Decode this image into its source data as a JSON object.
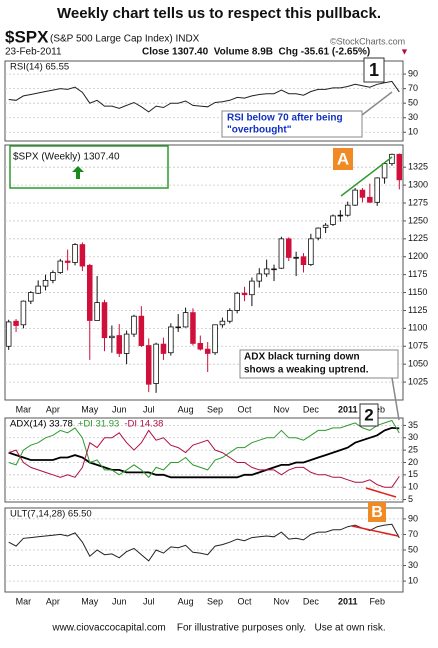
{
  "title": "Weekly chart tells us to respect this pullback.",
  "header": {
    "symbol": "$SPX",
    "name": "(S&P 500 Large Cap Index) INDX",
    "date": "23-Feb-2011",
    "stats": "Close 1307.40  Volume 8.9B  Chg -35.61 (-2.65%)",
    "credit": "©StockCharts.com"
  },
  "annotations": {
    "rsi_marker": "1",
    "rsi_note": [
      "RSI below 70 after being",
      "\"overbought\""
    ],
    "price_marker": "A",
    "adx_note": [
      "ADX black turning down",
      "shows a weaking uptrend."
    ],
    "adx_marker": "2",
    "ult_marker": "B"
  },
  "footer": "www.ciovaccocapital.com    For illustrative purposes only.   Use at own risk.",
  "chart_data": [
    {
      "type": "line",
      "title": "RSI(14) 65.55",
      "series": [
        {
          "color": "#222222",
          "values": [
            55,
            54,
            60,
            62,
            64,
            66,
            68,
            70,
            69,
            72,
            65,
            50,
            54,
            46,
            46,
            43,
            47,
            51,
            45,
            38,
            46,
            44,
            50,
            50,
            53,
            47,
            46,
            45,
            51,
            52,
            54,
            58,
            57,
            60,
            62,
            63,
            63,
            68,
            63,
            63,
            61,
            66,
            69,
            69,
            71,
            71,
            73,
            76,
            74,
            72,
            76,
            78,
            80,
            65.55
          ]
        }
      ],
      "ylim": [
        -2,
        108
      ],
      "yticks": [
        90,
        70,
        50,
        30,
        10
      ],
      "grid": true
    },
    {
      "type": "candlestick",
      "title": "$SPX (Weekly) 1307.40",
      "categories": [
        null,
        null,
        "Mar",
        null,
        null,
        null,
        "Apr",
        null,
        null,
        null,
        null,
        "May",
        null,
        null,
        null,
        "Jun",
        null,
        null,
        null,
        "Jul",
        null,
        null,
        null,
        null,
        "Aug",
        null,
        null,
        null,
        "Sep",
        null,
        null,
        null,
        "Oct",
        null,
        null,
        null,
        null,
        "Nov",
        null,
        null,
        null,
        "Dec",
        null,
        null,
        null,
        null,
        "2011",
        null,
        null,
        null,
        "Feb",
        null,
        null,
        null
      ],
      "open": [
        1075,
        1110,
        1105,
        1138,
        1149,
        1159,
        1167,
        1178,
        1194,
        1192,
        1217,
        1188,
        1111,
        1136,
        1087,
        1090,
        1065,
        1092,
        1117,
        1076,
        1023,
        1078,
        1066,
        1102,
        1102,
        1122,
        1079,
        1071,
        1066,
        1105,
        1110,
        1125,
        1149,
        1147,
        1166,
        1176,
        1183,
        1184,
        1225,
        1199,
        1200,
        1189,
        1226,
        1241,
        1245,
        1257,
        1258,
        1272,
        1293,
        1283,
        1276,
        1310,
        1330,
        1343
      ],
      "high": [
        1112,
        1113,
        1139,
        1152,
        1167,
        1175,
        1181,
        1197,
        1210,
        1219,
        1220,
        1190,
        1173,
        1140,
        1104,
        1106,
        1097,
        1119,
        1131,
        1086,
        1080,
        1087,
        1107,
        1120,
        1129,
        1128,
        1090,
        1081,
        1105,
        1115,
        1128,
        1151,
        1158,
        1171,
        1184,
        1196,
        1189,
        1228,
        1227,
        1207,
        1205,
        1232,
        1241,
        1247,
        1259,
        1265,
        1277,
        1296,
        1296,
        1302,
        1311,
        1332,
        1344,
        1344
      ],
      "low": [
        1070,
        1095,
        1100,
        1134,
        1148,
        1153,
        1163,
        1176,
        1181,
        1188,
        1180,
        1056,
        1111,
        1068,
        1066,
        1060,
        1050,
        1088,
        1074,
        1011,
        1010,
        1056,
        1062,
        1095,
        1101,
        1076,
        1069,
        1039,
        1063,
        1101,
        1107,
        1121,
        1138,
        1131,
        1157,
        1172,
        1166,
        1183,
        1194,
        1173,
        1178,
        1187,
        1223,
        1233,
        1243,
        1249,
        1256,
        1271,
        1276,
        1276,
        1271,
        1302,
        1327,
        1294
      ],
      "close": [
        1109,
        1104,
        1138,
        1150,
        1159,
        1167,
        1178,
        1194,
        1192,
        1217,
        1187,
        1111,
        1136,
        1087,
        1089,
        1065,
        1092,
        1117,
        1076,
        1022,
        1078,
        1065,
        1102,
        1102,
        1122,
        1079,
        1071,
        1065,
        1105,
        1110,
        1125,
        1149,
        1147,
        1166,
        1176,
        1183,
        1183,
        1225,
        1199,
        1199,
        1189,
        1225,
        1240,
        1244,
        1257,
        1258,
        1272,
        1293,
        1283,
        1276,
        1310,
        1330,
        1343,
        1307.4
      ],
      "up_color": "#ffffff",
      "down_color": "#d0103a",
      "ylim": [
        1000,
        1356
      ],
      "yticks": [
        1025,
        1050,
        1075,
        1100,
        1125,
        1150,
        1175,
        1200,
        1225,
        1250,
        1275,
        1300,
        1325
      ],
      "grid": true
    },
    {
      "type": "line",
      "title": "ADX(14) 33.78",
      "series": [
        {
          "name": "ADX(14) 33.78",
          "color": "#000000",
          "values": [
            24,
            23,
            22,
            21,
            21,
            21,
            21,
            22,
            22,
            23,
            22,
            20,
            19,
            18,
            17,
            17,
            16,
            16,
            16,
            16,
            15,
            15,
            14,
            14,
            14,
            14,
            14,
            14,
            14,
            14,
            14,
            14,
            15,
            15,
            16,
            17,
            18,
            19,
            19,
            20,
            20,
            21,
            22,
            23,
            24,
            25,
            26,
            28,
            29,
            30,
            31,
            33,
            34,
            33.78
          ]
        },
        {
          "name": "+DI 31.93",
          "color": "#2e9b2e",
          "values": [
            20,
            19,
            25,
            27,
            28,
            30,
            31,
            33,
            32,
            34,
            30,
            20,
            21,
            17,
            17,
            15,
            17,
            19,
            17,
            14,
            18,
            17,
            20,
            20,
            22,
            19,
            18,
            17,
            21,
            22,
            24,
            26,
            26,
            28,
            29,
            30,
            30,
            33,
            30,
            30,
            29,
            31,
            33,
            33,
            34,
            34,
            35,
            36,
            34,
            33,
            35,
            36,
            37,
            31.93
          ]
        },
        {
          "name": "-DI 14.38",
          "color": "#b01040",
          "values": [
            24,
            25,
            20,
            18,
            17,
            16,
            15,
            14,
            15,
            14,
            18,
            28,
            26,
            30,
            30,
            32,
            28,
            25,
            28,
            33,
            29,
            30,
            27,
            26,
            24,
            27,
            28,
            29,
            25,
            24,
            22,
            20,
            20,
            18,
            17,
            17,
            17,
            15,
            17,
            18,
            18,
            16,
            15,
            15,
            14,
            14,
            13,
            12,
            12,
            13,
            11,
            10,
            10,
            14.38
          ]
        }
      ],
      "ylim": [
        4,
        38
      ],
      "yticks": [
        35,
        30,
        25,
        20,
        15,
        10,
        5
      ],
      "grid": true
    },
    {
      "type": "line",
      "title": "ULT(7,14,28) 65.50",
      "categories": [
        null,
        null,
        "Mar",
        null,
        null,
        null,
        "Apr",
        null,
        null,
        null,
        null,
        "May",
        null,
        null,
        null,
        "Jun",
        null,
        null,
        null,
        "Jul",
        null,
        null,
        null,
        null,
        "Aug",
        null,
        null,
        null,
        "Sep",
        null,
        null,
        null,
        "Oct",
        null,
        null,
        null,
        null,
        "Nov",
        null,
        null,
        null,
        "Dec",
        null,
        null,
        null,
        null,
        "2011",
        null,
        null,
        null,
        "Feb",
        null,
        null,
        null
      ],
      "series": [
        {
          "color": "#222222",
          "values": [
            60,
            55,
            65,
            66,
            67,
            68,
            69,
            70,
            68,
            72,
            60,
            42,
            50,
            44,
            45,
            40,
            48,
            52,
            44,
            36,
            50,
            46,
            54,
            53,
            56,
            47,
            46,
            44,
            55,
            57,
            60,
            64,
            62,
            66,
            67,
            68,
            67,
            73,
            64,
            65,
            63,
            70,
            73,
            73,
            76,
            76,
            80,
            82,
            78,
            75,
            80,
            82,
            83,
            65.5
          ]
        }
      ],
      "ylim": [
        -4,
        104
      ],
      "yticks": [
        90,
        70,
        50,
        30,
        10
      ],
      "grid": true
    }
  ]
}
